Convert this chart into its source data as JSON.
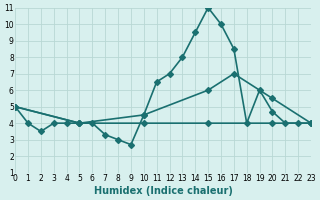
{
  "xlabel": "Humidex (Indice chaleur)",
  "ylabel": "",
  "bg_color": "#d8f0ee",
  "line_color": "#1a7070",
  "grid_color": "#b8d8d4",
  "xlim": [
    0,
    23
  ],
  "ylim": [
    1,
    11
  ],
  "xticks": [
    0,
    1,
    2,
    3,
    4,
    5,
    6,
    7,
    8,
    9,
    10,
    11,
    12,
    13,
    14,
    15,
    16,
    17,
    18,
    19,
    20,
    21,
    22,
    23
  ],
  "yticks": [
    1,
    2,
    3,
    4,
    5,
    6,
    7,
    8,
    9,
    10,
    11
  ],
  "line1_x": [
    0,
    1,
    2,
    3,
    4,
    5,
    6,
    7,
    8,
    9,
    10,
    11,
    12,
    13,
    14,
    15,
    16,
    17,
    18,
    19,
    20,
    21,
    22,
    23
  ],
  "line1_y": [
    5,
    4,
    3.5,
    4,
    4,
    4,
    4,
    3.3,
    3.0,
    2.7,
    4.5,
    6.5,
    7.0,
    8.0,
    9.5,
    11.0,
    10.0,
    8.5,
    4.0,
    6.0,
    4.7,
    4.0,
    4.0,
    4.0
  ],
  "line2_x": [
    0,
    5,
    10,
    15,
    20,
    23
  ],
  "line2_y": [
    5.0,
    4.0,
    4.0,
    4.0,
    4.0,
    4.0
  ],
  "line3_x": [
    0,
    5,
    10,
    15,
    17,
    20,
    23
  ],
  "line3_y": [
    5.0,
    4.0,
    4.5,
    6.0,
    7.0,
    5.5,
    4.0
  ],
  "marker": "D",
  "markersize": 3,
  "linewidth": 1.2
}
